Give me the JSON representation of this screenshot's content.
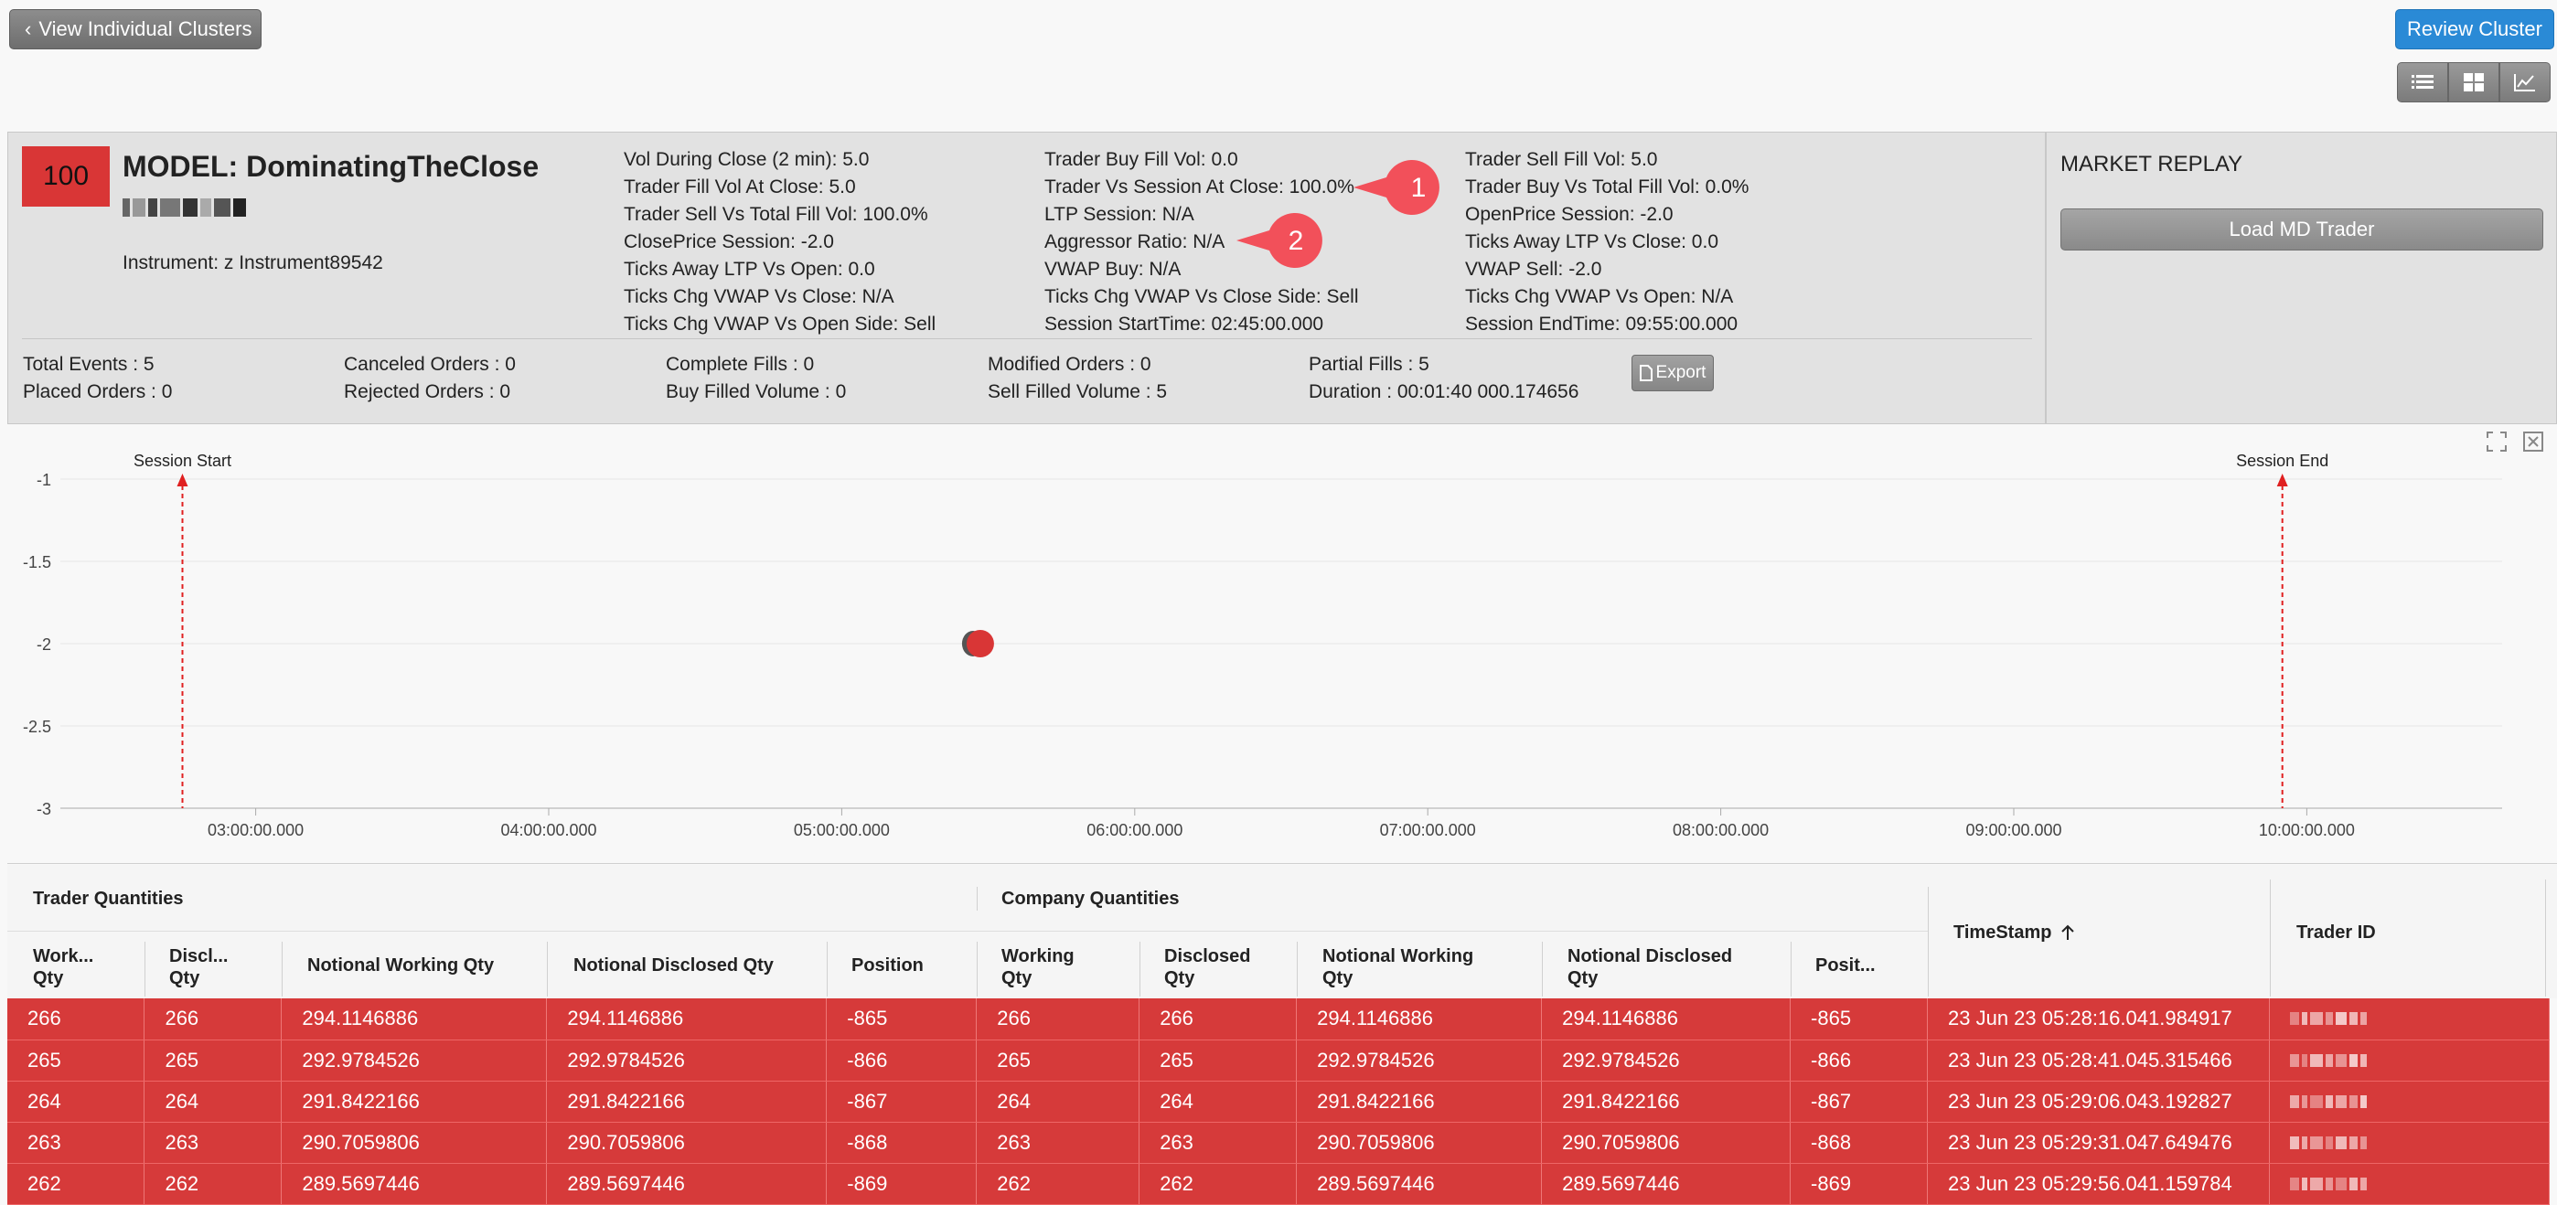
{
  "top_bar": {
    "back_label": "View Individual Clusters",
    "review_label": "Review Cluster",
    "view_icons": [
      "list-view-icon",
      "grid-view-icon",
      "chart-view-icon"
    ]
  },
  "model": {
    "score": "100",
    "title": "MODEL: DominatingTheClose",
    "instrument": "Instrument: z Instrument89542"
  },
  "metrics": {
    "col1": [
      "Vol During Close (2 min): 5.0",
      "Trader Fill Vol At Close: 5.0",
      "Trader Sell Vs Total Fill Vol: 100.0%",
      "ClosePrice Session: -2.0",
      "Ticks Away LTP Vs Open: 0.0",
      "Ticks Chg VWAP Vs Close: N/A",
      "Ticks Chg VWAP Vs Open Side: Sell"
    ],
    "col2": [
      "Trader Buy Fill Vol: 0.0",
      "Trader Vs Session At Close: 100.0%",
      "LTP Session: N/A",
      "Aggressor Ratio: N/A",
      "VWAP Buy: N/A",
      "Ticks Chg VWAP Vs Close Side: Sell",
      "Session StartTime: 02:45:00.000"
    ],
    "col3": [
      "Trader Sell Fill Vol: 5.0",
      "Trader Buy Vs Total Fill Vol: 0.0%",
      "OpenPrice Session: -2.0",
      "Ticks Away LTP Vs Close: 0.0",
      "VWAP Sell: -2.0",
      "Ticks Chg VWAP Vs Open: N/A",
      "Session EndTime: 09:55:00.000"
    ]
  },
  "stats": {
    "c1": [
      "Total Events : 5",
      "Placed Orders : 0"
    ],
    "c2": [
      "Canceled Orders : 0",
      "Rejected Orders : 0"
    ],
    "c3": [
      "Complete Fills : 0",
      "Buy Filled Volume : 0"
    ],
    "c4": [
      "Modified Orders : 0",
      "Sell Filled Volume : 5"
    ],
    "c5": [
      "Partial Fills : 5",
      "Duration : 00:01:40 000.174656"
    ],
    "export_label": "Export"
  },
  "market_replay": {
    "title": "MARKET REPLAY",
    "load_label": "Load MD Trader"
  },
  "callouts": [
    "1",
    "2"
  ],
  "chart_data": {
    "type": "scatter",
    "x_ticks": [
      "03:00:00.000",
      "04:00:00.000",
      "05:00:00.000",
      "06:00:00.000",
      "07:00:00.000",
      "08:00:00.000",
      "09:00:00.000",
      "10:00:00.000"
    ],
    "y_ticks": [
      "-1",
      "-1.5",
      "-2",
      "-2.5",
      "-3"
    ],
    "ylim": [
      -3,
      -1
    ],
    "xlim": [
      "02:20:00.000",
      "10:40:00.000"
    ],
    "points": [
      {
        "x": "05:28:00.000",
        "y": -2
      }
    ],
    "markers": [
      {
        "label": "Session Start",
        "x": "02:45:00.000"
      },
      {
        "label": "Session End",
        "x": "09:55:00.000"
      }
    ],
    "grid": true,
    "point_color": "#d93636",
    "marker_color": "#e02020"
  },
  "table": {
    "group_trader": "Trader Quantities",
    "group_company": "Company Quantities",
    "columns": [
      [
        "Work...",
        "Qty"
      ],
      [
        "Discl...",
        "Qty"
      ],
      [
        "Notional Working Qty",
        ""
      ],
      [
        "Notional Disclosed Qty",
        ""
      ],
      [
        "Position",
        ""
      ],
      [
        "Working",
        "Qty"
      ],
      [
        "Disclosed",
        "Qty"
      ],
      [
        "Notional Working",
        "Qty"
      ],
      [
        "Notional Disclosed",
        "Qty"
      ],
      [
        "Posit...",
        ""
      ]
    ],
    "timestamp_label": "TimeStamp",
    "trader_id_label": "Trader ID",
    "rows": [
      [
        "266",
        "266",
        "294.1146886",
        "294.1146886",
        "-865",
        "266",
        "266",
        "294.1146886",
        "294.1146886",
        "-865",
        "23 Jun 23 05:28:16.041.984917"
      ],
      [
        "265",
        "265",
        "292.9784526",
        "292.9784526",
        "-866",
        "265",
        "265",
        "292.9784526",
        "292.9784526",
        "-866",
        "23 Jun 23 05:28:41.045.315466"
      ],
      [
        "264",
        "264",
        "291.8422166",
        "291.8422166",
        "-867",
        "264",
        "264",
        "291.8422166",
        "291.8422166",
        "-867",
        "23 Jun 23 05:29:06.043.192827"
      ],
      [
        "263",
        "263",
        "290.7059806",
        "290.7059806",
        "-868",
        "263",
        "263",
        "290.7059806",
        "290.7059806",
        "-868",
        "23 Jun 23 05:29:31.047.649476"
      ],
      [
        "262",
        "262",
        "289.5697446",
        "289.5697446",
        "-869",
        "262",
        "262",
        "289.5697446",
        "289.5697446",
        "-869",
        "23 Jun 23 05:29:56.041.159784"
      ]
    ],
    "row_color": "#d63a3a"
  }
}
